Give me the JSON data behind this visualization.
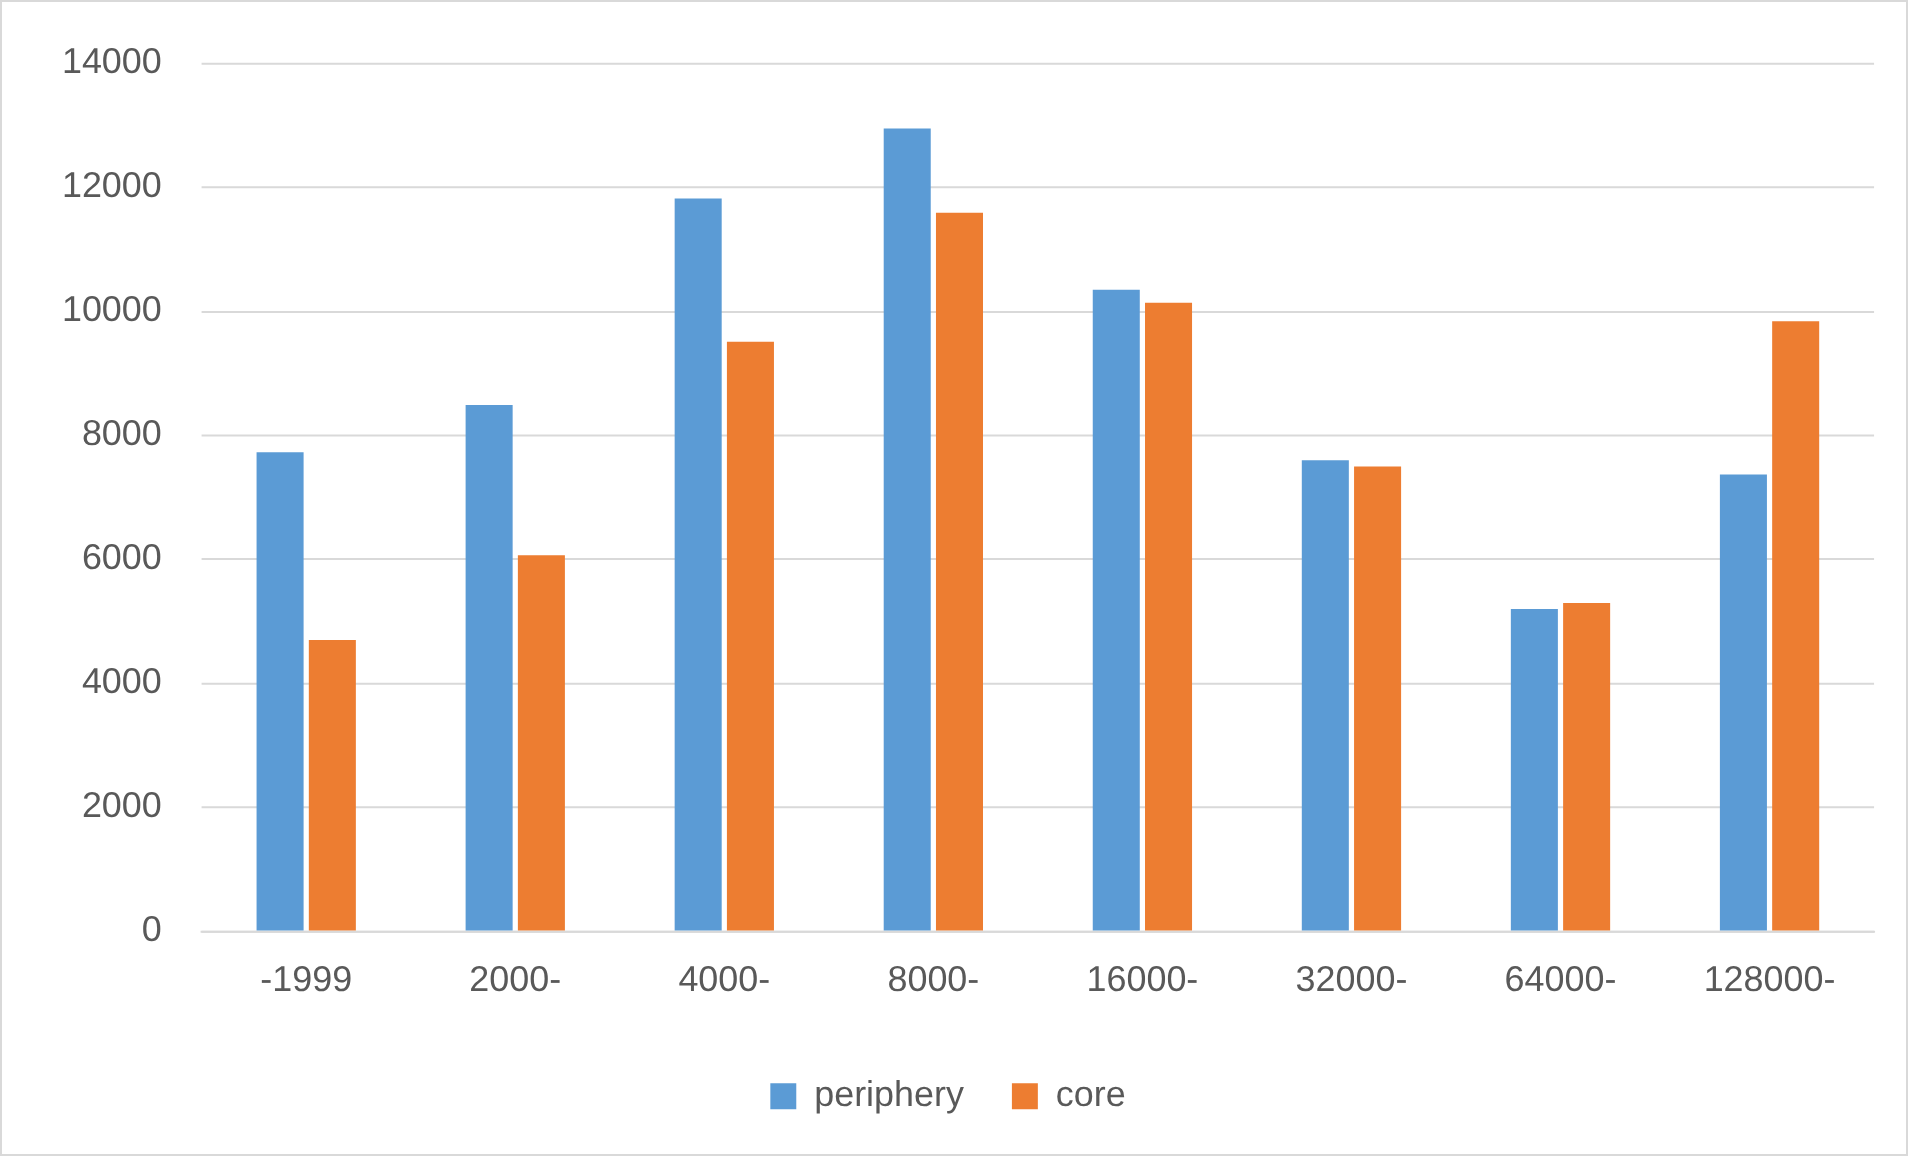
{
  "chart_data": {
    "type": "bar",
    "categories": [
      "-1999",
      "2000-",
      "4000-",
      "8000-",
      "16000-",
      "32000-",
      "64000-",
      "128000-"
    ],
    "series": [
      {
        "name": "periphery",
        "color": "#5b9bd5",
        "values": [
          7730,
          8490,
          11820,
          12950,
          10350,
          7600,
          5200,
          7370
        ]
      },
      {
        "name": "core",
        "color": "#ed7d31",
        "values": [
          4700,
          6070,
          9510,
          11590,
          10140,
          7500,
          5300,
          9840
        ]
      }
    ],
    "ylim": [
      0,
      14000
    ],
    "yticks": [
      0,
      2000,
      4000,
      6000,
      8000,
      10000,
      12000,
      14000
    ],
    "grid": "y",
    "legend": "bottom"
  }
}
